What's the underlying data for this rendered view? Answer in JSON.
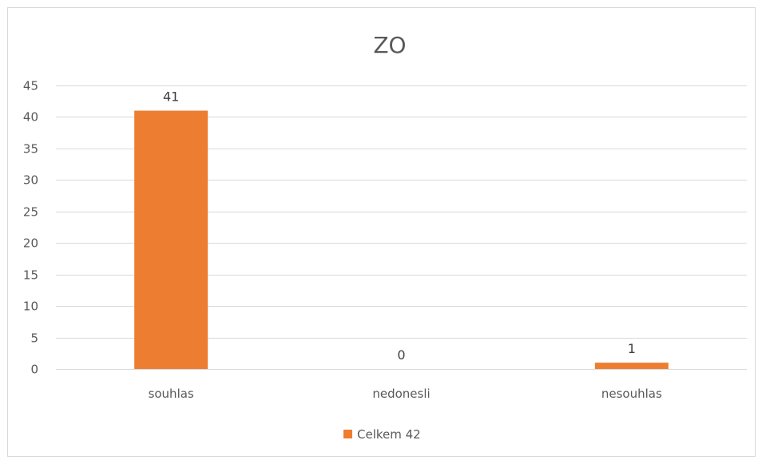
{
  "chart_data": {
    "type": "bar",
    "title": "ZO",
    "categories": [
      "souhlas",
      "nedonesli",
      "nesouhlas"
    ],
    "series": [
      {
        "name": "Celkem 42",
        "values": [
          41,
          0,
          1
        ],
        "color": "#ed7d31"
      }
    ],
    "ylim": [
      0,
      45
    ],
    "yticks": [
      0,
      5,
      10,
      15,
      20,
      25,
      30,
      35,
      40,
      45
    ],
    "xlabel": "",
    "ylabel": "",
    "grid": true,
    "data_labels": true,
    "legend_position": "bottom"
  }
}
